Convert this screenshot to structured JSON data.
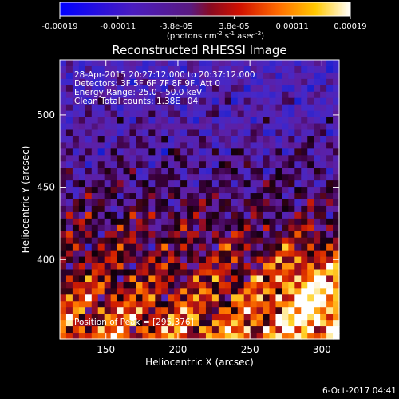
{
  "chart_data": {
    "type": "heatmap",
    "title": "Reconstructed RHESSI Image",
    "xlabel": "Heliocentric X (arcsec)",
    "ylabel": "Heliocentric Y (arcsec)",
    "xlim": [
      118,
      312
    ],
    "ylim": [
      345,
      538
    ],
    "xticks": [
      150,
      200,
      250,
      300
    ],
    "yticks": [
      400,
      450,
      500
    ],
    "colorscale": "hot",
    "colorbar": {
      "range": [
        -0.00019,
        0.00019
      ],
      "tick_labels": [
        "-0.00019",
        "-0.00011",
        "-3.8e-05",
        "3.8e-05",
        "0.00011",
        "0.00019"
      ],
      "unit_label": "(photons cm",
      "unit_sup1": "-2",
      "unit_mid": " s",
      "unit_sup2": "-1",
      "unit_mid2": " asec",
      "unit_sup3": "-2",
      "unit_end": ")"
    },
    "annotations": {
      "time": "28-Apr-2015 20:27:12.000 to 20:37:12.000",
      "detectors": "Detectors: 3F 5F 6F 7F 8F 9F, Att 0",
      "energy": "Energy Range: 25.0 - 50.0 keV",
      "clean": "Clean    Total counts: 1.38E+04",
      "peak": "Position of Peak = [295,376]"
    },
    "peak_position": [
      295,
      376
    ],
    "grid": false
  },
  "footer": {
    "date": "6-Oct-2017 04:41"
  }
}
